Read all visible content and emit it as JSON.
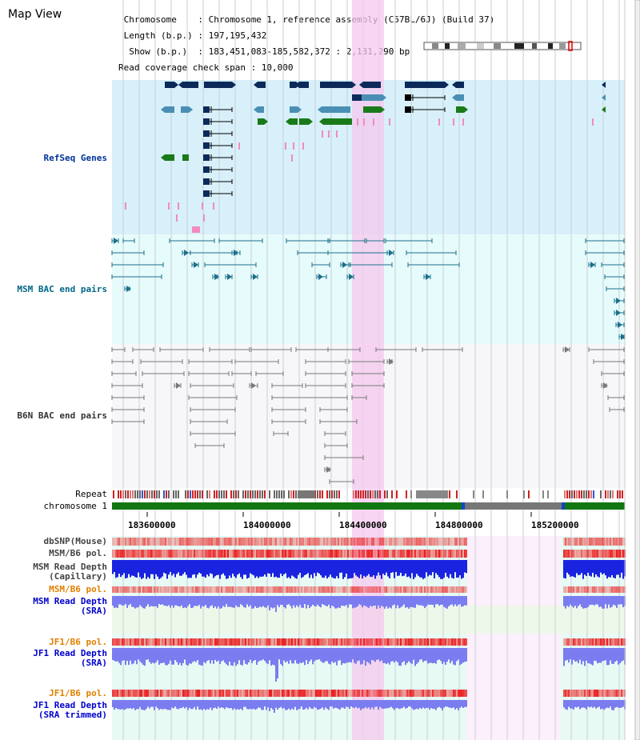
{
  "header": {
    "title": "Map View",
    "info_lines": [
      " Chromosome    : Chromosome 1, reference assembly (C57BL/6J) (Build 37)",
      " Length (b.p.) : 197,195,432",
      "  Show (b.p.)  : 183,451,083-185,582,372 : 2,131,290 bp",
      "Read coverage check span : 10,000"
    ]
  },
  "tracks": {
    "refseq": "RefSeq Genes",
    "msm_bac": "MSM BAC end pairs",
    "b6n_bac": "B6N BAC end pairs",
    "repeat": "Repeat",
    "chromosome": "chromosome 1",
    "dbsnp": "dbSNP(Mouse)",
    "msm_b6_pol_1": "MSM/B6 pol.",
    "msm_read_depth_cap": "MSM Read Depth\n(Capillary)",
    "msm_b6_pol_2": "MSM/B6 pol.",
    "msm_read_depth_sra": "MSM Read Depth\n(SRA)",
    "jf1_b6_pol_1": "JF1/B6 pol.",
    "jf1_read_depth_sra": "JF1 Read Depth\n(SRA)",
    "jf1_b6_pol_2": "JF1/B6 pol.",
    "jf1_read_depth_trim": "JF1 Read Depth\n(SRA trimmed)"
  },
  "axis": {
    "ticks": [
      "183600000",
      "184000000",
      "184400000",
      "184800000",
      "185200000"
    ]
  },
  "colors": {
    "refseq_bg": "#d8f0fa",
    "msm_bg": "#e6fbfb",
    "b6n_bg": "#f5f5f8",
    "highlight": "#f7d6f2",
    "chrom_green": "#117711",
    "navy": "#0b2a5a",
    "steel": "#4a8fb3",
    "teal": "#1a6f8a",
    "gene_green": "#1a7a1a"
  }
}
